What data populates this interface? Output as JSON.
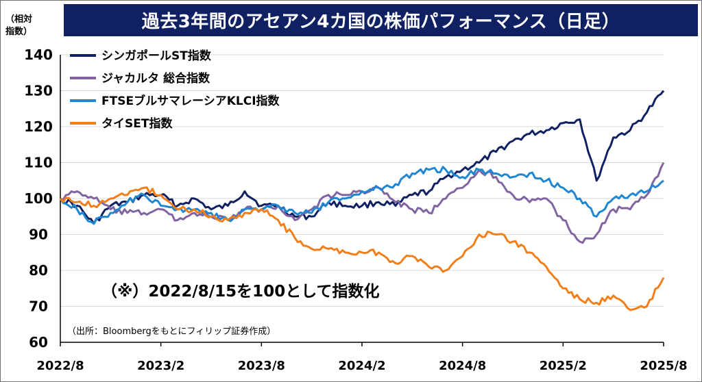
{
  "title": "過去3年間のアセアン4カ国の株価パフォーマンス（日足）",
  "ylabel_line1": "（相対",
  "ylabel_line2": "指数）",
  "note": "（※）2022/8/15を100として指数化",
  "source": "（出所：Bloombergをもとにフィリップ証券作成）",
  "chart_data": {
    "type": "line",
    "ylim": [
      60,
      140
    ],
    "yticks": [
      60,
      70,
      80,
      90,
      100,
      110,
      120,
      130,
      140
    ],
    "xticks": [
      "2022/8",
      "2023/2",
      "2023/8",
      "2024/2",
      "2024/8",
      "2025/2",
      "2025/8"
    ],
    "grid": "horizontal",
    "legend_position": "top-left",
    "series": [
      {
        "name": "シンガポールST指数",
        "color": "#0f2163",
        "values": [
          [
            "2022/8",
            100
          ],
          [
            "2022/9",
            98
          ],
          [
            "2022/10",
            93
          ],
          [
            "2022/11",
            98
          ],
          [
            "2022/12",
            99
          ],
          [
            "2023/1",
            101
          ],
          [
            "2023/2",
            101
          ],
          [
            "2023/3",
            98
          ],
          [
            "2023/4",
            100
          ],
          [
            "2023/5",
            97
          ],
          [
            "2023/6",
            98
          ],
          [
            "2023/7",
            102
          ],
          [
            "2023/8",
            98
          ],
          [
            "2023/9",
            98
          ],
          [
            "2023/10",
            95
          ],
          [
            "2023/11",
            95
          ],
          [
            "2023/12",
            99
          ],
          [
            "2024/1",
            98
          ],
          [
            "2024/2",
            98
          ],
          [
            "2024/3",
            99
          ],
          [
            "2024/4",
            98
          ],
          [
            "2024/5",
            101
          ],
          [
            "2024/6",
            102
          ],
          [
            "2024/7",
            106
          ],
          [
            "2024/8",
            108
          ],
          [
            "2024/9",
            110
          ],
          [
            "2024/10",
            113
          ],
          [
            "2024/11",
            116
          ],
          [
            "2024/12",
            118
          ],
          [
            "2025/1",
            119
          ],
          [
            "2025/2",
            121
          ],
          [
            "2025/3",
            122
          ],
          [
            "2025/4",
            105
          ],
          [
            "2025/5",
            117
          ],
          [
            "2025/6",
            119
          ],
          [
            "2025/7",
            124
          ],
          [
            "2025/8",
            130
          ]
        ]
      },
      {
        "name": "ジャカルタ 総合指数",
        "color": "#8064a2",
        "values": [
          [
            "2022/8",
            100
          ],
          [
            "2022/9",
            102
          ],
          [
            "2022/10",
            100
          ],
          [
            "2022/11",
            97
          ],
          [
            "2022/12",
            96
          ],
          [
            "2023/1",
            96
          ],
          [
            "2023/2",
            97
          ],
          [
            "2023/3",
            94
          ],
          [
            "2023/4",
            96
          ],
          [
            "2023/5",
            95
          ],
          [
            "2023/6",
            94
          ],
          [
            "2023/7",
            97
          ],
          [
            "2023/8",
            97
          ],
          [
            "2023/9",
            98
          ],
          [
            "2023/10",
            94
          ],
          [
            "2023/11",
            97
          ],
          [
            "2023/12",
            101
          ],
          [
            "2024/1",
            101
          ],
          [
            "2024/2",
            102
          ],
          [
            "2024/3",
            103
          ],
          [
            "2024/4",
            99
          ],
          [
            "2024/5",
            97
          ],
          [
            "2024/6",
            96
          ],
          [
            "2024/7",
            100
          ],
          [
            "2024/8",
            103
          ],
          [
            "2024/9",
            108
          ],
          [
            "2024/10",
            106
          ],
          [
            "2024/11",
            101
          ],
          [
            "2024/12",
            99
          ],
          [
            "2025/1",
            100
          ],
          [
            "2025/2",
            94
          ],
          [
            "2025/3",
            88
          ],
          [
            "2025/4",
            90
          ],
          [
            "2025/5",
            97
          ],
          [
            "2025/6",
            97
          ],
          [
            "2025/7",
            101
          ],
          [
            "2025/8",
            110
          ]
        ]
      },
      {
        "name": "FTSEブルサマレーシアKLCI指数",
        "color": "#1f86d1",
        "values": [
          [
            "2022/8",
            100
          ],
          [
            "2022/9",
            97
          ],
          [
            "2022/10",
            93
          ],
          [
            "2022/11",
            96
          ],
          [
            "2022/12",
            99
          ],
          [
            "2023/1",
            101
          ],
          [
            "2023/2",
            98
          ],
          [
            "2023/3",
            97
          ],
          [
            "2023/4",
            97
          ],
          [
            "2023/5",
            96
          ],
          [
            "2023/6",
            94
          ],
          [
            "2023/7",
            97
          ],
          [
            "2023/8",
            97
          ],
          [
            "2023/9",
            98
          ],
          [
            "2023/10",
            96
          ],
          [
            "2023/11",
            96
          ],
          [
            "2023/12",
            99
          ],
          [
            "2024/1",
            100
          ],
          [
            "2024/2",
            102
          ],
          [
            "2024/3",
            103
          ],
          [
            "2024/4",
            104
          ],
          [
            "2024/5",
            107
          ],
          [
            "2024/6",
            108
          ],
          [
            "2024/7",
            108
          ],
          [
            "2024/8",
            106
          ],
          [
            "2024/9",
            108
          ],
          [
            "2024/10",
            107
          ],
          [
            "2024/11",
            106
          ],
          [
            "2024/12",
            107
          ],
          [
            "2025/1",
            105
          ],
          [
            "2025/2",
            103
          ],
          [
            "2025/3",
            100
          ],
          [
            "2025/4",
            95
          ],
          [
            "2025/5",
            100
          ],
          [
            "2025/6",
            101
          ],
          [
            "2025/7",
            102
          ],
          [
            "2025/8",
            105
          ]
        ]
      },
      {
        "name": "タイSET指数",
        "color": "#f07f1a",
        "values": [
          [
            "2022/8",
            100
          ],
          [
            "2022/9",
            99
          ],
          [
            "2022/10",
            98
          ],
          [
            "2022/11",
            100
          ],
          [
            "2022/12",
            101
          ],
          [
            "2023/1",
            103
          ],
          [
            "2023/2",
            101
          ],
          [
            "2023/3",
            97
          ],
          [
            "2023/4",
            97
          ],
          [
            "2023/5",
            95
          ],
          [
            "2023/6",
            94
          ],
          [
            "2023/7",
            96
          ],
          [
            "2023/8",
            97
          ],
          [
            "2023/9",
            94
          ],
          [
            "2023/10",
            89
          ],
          [
            "2023/11",
            86
          ],
          [
            "2023/12",
            86
          ],
          [
            "2024/1",
            85
          ],
          [
            "2024/2",
            85
          ],
          [
            "2024/3",
            85
          ],
          [
            "2024/4",
            82
          ],
          [
            "2024/5",
            84
          ],
          [
            "2024/6",
            81
          ],
          [
            "2024/7",
            80
          ],
          [
            "2024/8",
            84
          ],
          [
            "2024/9",
            90
          ],
          [
            "2024/10",
            90
          ],
          [
            "2024/11",
            88
          ],
          [
            "2024/12",
            85
          ],
          [
            "2025/1",
            81
          ],
          [
            "2025/2",
            75
          ],
          [
            "2025/3",
            72
          ],
          [
            "2025/4",
            71
          ],
          [
            "2025/5",
            73
          ],
          [
            "2025/6",
            69
          ],
          [
            "2025/7",
            70
          ],
          [
            "2025/8",
            78
          ]
        ]
      }
    ]
  }
}
